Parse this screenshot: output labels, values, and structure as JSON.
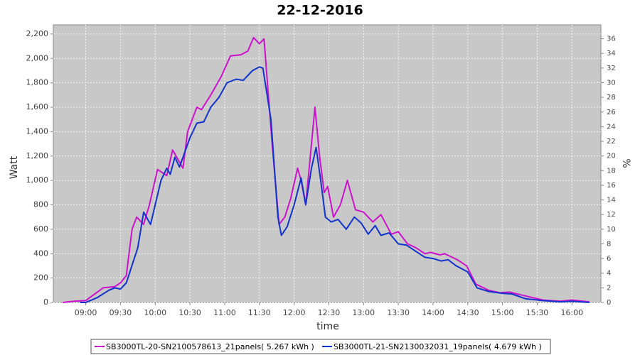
{
  "chart_data": {
    "type": "line",
    "title": "22-12-2016",
    "x_label": "time",
    "y_label": "Watt",
    "y2_label": "%",
    "xlim": [
      "08:32",
      "16:25"
    ],
    "xticks": [
      "09:00",
      "09:30",
      "10:00",
      "10:30",
      "11:00",
      "11:30",
      "12:00",
      "12:30",
      "13:00",
      "13:30",
      "14:00",
      "14:30",
      "15:00",
      "15:30",
      "16:00"
    ],
    "ylim": [
      0,
      2275
    ],
    "yticks": [
      0,
      200,
      400,
      600,
      800,
      {
        "value": 1000,
        "label": "1,000"
      },
      {
        "value": 1200,
        "label": "1,200"
      },
      {
        "value": 1400,
        "label": "1,400"
      },
      {
        "value": 1600,
        "label": "1,600"
      },
      {
        "value": 1800,
        "label": "1,800"
      },
      {
        "value": 2000,
        "label": "2,000"
      },
      {
        "value": 2200,
        "label": "2,200"
      }
    ],
    "y2lim": [
      0,
      37.9
    ],
    "y2ticks": [
      0,
      2,
      4,
      6,
      8,
      10,
      12,
      14,
      16,
      18,
      20,
      22,
      24,
      26,
      28,
      30,
      32,
      34,
      36
    ],
    "grid": true,
    "legend": "bottom",
    "series": [
      {
        "name": "SB3000TL-20-SN2100578613_21panels( 5.267 kWh )",
        "color": "#cc11cc",
        "x": [
          "08:40",
          "08:50",
          "09:00",
          "09:05",
          "09:15",
          "09:25",
          "09:30",
          "09:35",
          "09:40",
          "09:44",
          "09:50",
          "09:55",
          "10:02",
          "10:10",
          "10:15",
          "10:24",
          "10:28",
          "10:36",
          "10:40",
          "10:48",
          "10:57",
          "11:05",
          "11:14",
          "11:20",
          "11:25",
          "11:30",
          "11:34",
          "11:41",
          "11:47",
          "11:52",
          "11:57",
          "12:03",
          "12:06",
          "12:10",
          "12:14",
          "12:18",
          "12:22",
          "12:26",
          "12:29",
          "12:34",
          "12:40",
          "12:46",
          "12:53",
          "13:00",
          "13:08",
          "13:15",
          "13:24",
          "13:30",
          "13:38",
          "13:45",
          "13:53",
          "13:58",
          "14:06",
          "14:10",
          "14:21",
          "14:29",
          "14:37",
          "14:48",
          "14:58",
          "15:06",
          "15:17",
          "15:35",
          "15:50",
          "16:00",
          "16:15"
        ],
        "values": [
          0,
          10,
          15,
          50,
          120,
          130,
          160,
          220,
          600,
          700,
          640,
          800,
          1090,
          1040,
          1250,
          1100,
          1400,
          1600,
          1580,
          1700,
          1850,
          2020,
          2030,
          2060,
          2170,
          2120,
          2160,
          1300,
          640,
          700,
          850,
          1100,
          1000,
          800,
          1200,
          1600,
          1200,
          900,
          950,
          700,
          800,
          1000,
          760,
          740,
          660,
          720,
          560,
          580,
          480,
          450,
          400,
          410,
          390,
          400,
          350,
          300,
          150,
          100,
          80,
          85,
          60,
          20,
          10,
          20,
          5
        ]
      },
      {
        "name": "SB3000TL-21-SN2130032031_19panels( 4.679 kWh )",
        "color": "#1133cc",
        "x": [
          "08:55",
          "09:00",
          "09:10",
          "09:20",
          "09:25",
          "09:30",
          "09:35",
          "09:45",
          "09:50",
          "09:56",
          "10:05",
          "10:10",
          "10:13",
          "10:17",
          "10:21",
          "10:30",
          "10:36",
          "10:42",
          "10:48",
          "10:55",
          "11:02",
          "11:10",
          "11:16",
          "11:24",
          "11:30",
          "11:33",
          "11:40",
          "11:46",
          "11:49",
          "11:54",
          "12:00",
          "12:06",
          "12:10",
          "12:15",
          "12:19",
          "12:23",
          "12:27",
          "12:32",
          "12:38",
          "12:45",
          "12:52",
          "12:58",
          "13:04",
          "13:10",
          "13:15",
          "13:22",
          "13:30",
          "13:37",
          "13:45",
          "13:53",
          "14:00",
          "14:07",
          "14:13",
          "14:20",
          "14:30",
          "14:38",
          "14:48",
          "15:00",
          "15:08",
          "15:20",
          "15:35",
          "15:50",
          "16:00",
          "16:15"
        ],
        "values": [
          0,
          0,
          40,
          100,
          120,
          110,
          160,
          450,
          740,
          640,
          1000,
          1100,
          1050,
          1190,
          1110,
          1350,
          1470,
          1480,
          1600,
          1680,
          1800,
          1830,
          1820,
          1900,
          1930,
          1920,
          1500,
          700,
          550,
          620,
          800,
          1020,
          800,
          1100,
          1270,
          1000,
          700,
          660,
          680,
          600,
          700,
          650,
          560,
          630,
          550,
          570,
          480,
          470,
          420,
          370,
          360,
          340,
          350,
          300,
          250,
          120,
          90,
          75,
          70,
          30,
          15,
          5,
          10,
          0
        ]
      }
    ]
  }
}
